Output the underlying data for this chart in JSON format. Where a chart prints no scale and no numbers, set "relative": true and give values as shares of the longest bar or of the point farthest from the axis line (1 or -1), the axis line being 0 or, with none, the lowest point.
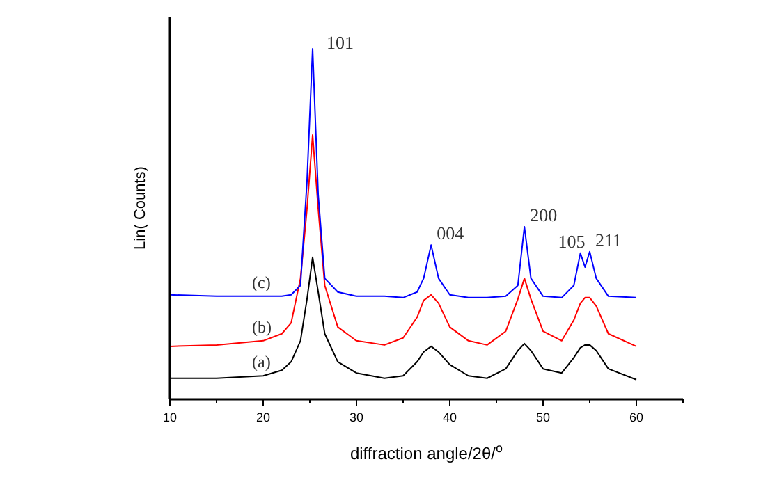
{
  "chart_data": {
    "type": "line",
    "relative": true,
    "xlabel": "diffraction angle/2θ/$^{o}$",
    "ylabel": "Lin( Counts)",
    "xlim": [
      10,
      65
    ],
    "xticks": [
      10,
      {
        "value": 15,
        "label": null
      },
      20,
      {
        "value": 25,
        "label": null
      },
      30,
      {
        "value": 35,
        "label": null
      },
      40,
      {
        "value": 45,
        "label": null
      },
      50,
      {
        "value": 55,
        "label": null
      },
      60,
      {
        "value": 65,
        "label": null
      }
    ],
    "x": [
      10,
      15,
      20,
      22,
      23,
      24,
      24.7,
      25.3,
      25.9,
      26.6,
      28,
      30,
      33,
      35,
      36.5,
      37.2,
      38,
      38.8,
      40,
      42,
      44,
      46,
      47.3,
      48,
      48.7,
      50,
      52,
      53.3,
      54,
      54.5,
      55,
      55.7,
      57,
      60
    ],
    "series": [
      {
        "name": "(a)",
        "color": "#000000",
        "values": [
          0.06,
          0.06,
          0.067,
          0.083,
          0.107,
          0.167,
          0.286,
          0.405,
          0.306,
          0.187,
          0.107,
          0.075,
          0.06,
          0.067,
          0.107,
          0.135,
          0.151,
          0.135,
          0.099,
          0.067,
          0.06,
          0.087,
          0.139,
          0.159,
          0.139,
          0.087,
          0.075,
          0.119,
          0.147,
          0.155,
          0.155,
          0.139,
          0.087,
          0.056
        ]
      },
      {
        "name": "(b)",
        "color": "#ff0000",
        "values": [
          0.151,
          0.155,
          0.167,
          0.187,
          0.218,
          0.345,
          0.544,
          0.754,
          0.544,
          0.325,
          0.206,
          0.167,
          0.155,
          0.175,
          0.234,
          0.282,
          0.298,
          0.274,
          0.206,
          0.167,
          0.155,
          0.194,
          0.286,
          0.345,
          0.286,
          0.194,
          0.167,
          0.226,
          0.274,
          0.29,
          0.29,
          0.266,
          0.187,
          0.151
        ]
      },
      {
        "name": "(c)",
        "color": "#0000ff",
        "values": [
          0.298,
          0.294,
          0.294,
          0.294,
          0.298,
          0.325,
          0.623,
          1,
          0.583,
          0.345,
          0.306,
          0.294,
          0.294,
          0.29,
          0.306,
          0.345,
          0.44,
          0.345,
          0.298,
          0.29,
          0.29,
          0.294,
          0.325,
          0.492,
          0.345,
          0.294,
          0.29,
          0.325,
          0.417,
          0.377,
          0.421,
          0.345,
          0.294,
          0.29
        ]
      }
    ],
    "annotations": [
      {
        "text": "101",
        "x": 25.3,
        "y": 1
      },
      {
        "text": "004",
        "x": 38,
        "y": 0.44
      },
      {
        "text": "200",
        "x": 48,
        "y": 0.492
      },
      {
        "text": "105",
        "x": 54,
        "y": 0.417
      },
      {
        "text": "211",
        "x": 55,
        "y": 0.421
      }
    ],
    "grid": false
  }
}
